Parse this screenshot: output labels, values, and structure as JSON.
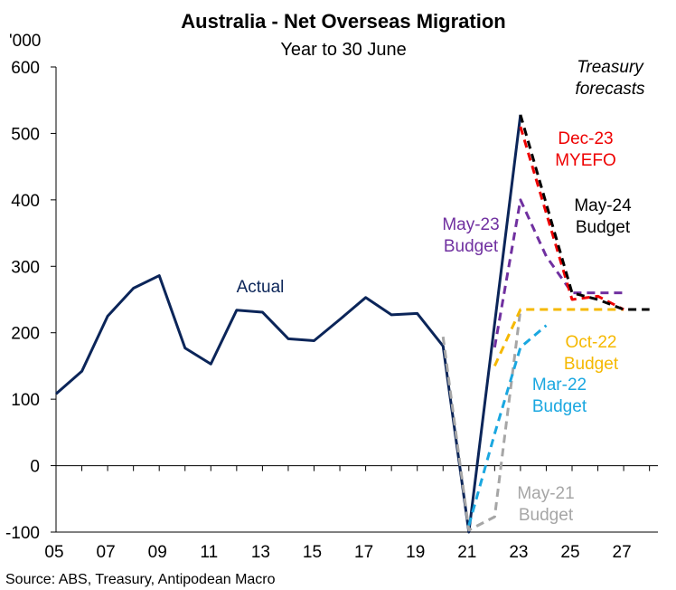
{
  "chart_data": {
    "type": "line",
    "title": "Australia - Net Overseas Migration",
    "subtitle": "Year to 30 June",
    "ylabel": "'000",
    "xlabel": "",
    "source": "Source: ABS, Treasury, Antipodean Macro",
    "ylim": [
      -100,
      600
    ],
    "xlim": [
      2005,
      2028
    ],
    "yticks": [
      -100,
      0,
      100,
      200,
      300,
      400,
      500,
      600
    ],
    "xticks": [
      {
        "label": "05",
        "x": 2005
      },
      {
        "label": "07",
        "x": 2007
      },
      {
        "label": "09",
        "x": 2009
      },
      {
        "label": "11",
        "x": 2011
      },
      {
        "label": "13",
        "x": 2013
      },
      {
        "label": "15",
        "x": 2015
      },
      {
        "label": "17",
        "x": 2017
      },
      {
        "label": "19",
        "x": 2019
      },
      {
        "label": "21",
        "x": 2021
      },
      {
        "label": "23",
        "x": 2023
      },
      {
        "label": "25",
        "x": 2025
      },
      {
        "label": "27",
        "x": 2027
      }
    ],
    "series": [
      {
        "key": "actual",
        "color": "#0b2559",
        "dash": false,
        "x": [
          2005,
          2006,
          2007,
          2008,
          2009,
          2010,
          2011,
          2012,
          2013,
          2014,
          2015,
          2016,
          2017,
          2018,
          2019,
          2020,
          2021,
          2023
        ],
        "y": [
          108,
          142,
          225,
          267,
          286,
          177,
          153,
          234,
          231,
          191,
          188,
          220,
          253,
          227,
          229,
          180,
          -100,
          528
        ]
      },
      {
        "key": "may21",
        "color": "#a6a6a6",
        "dash": true,
        "x": [
          2020,
          2021,
          2022,
          2023
        ],
        "y": [
          194,
          -97,
          -77,
          235
        ]
      },
      {
        "key": "mar22",
        "color": "#1aa7e0",
        "dash": true,
        "x": [
          2021,
          2022,
          2023,
          2024
        ],
        "y": [
          -90,
          48,
          178,
          211
        ]
      },
      {
        "key": "oct22",
        "color": "#f5b800",
        "dash": true,
        "x": [
          2022,
          2023,
          2024,
          2025,
          2026,
          2027
        ],
        "y": [
          150,
          235,
          235,
          235,
          235,
          235
        ]
      },
      {
        "key": "may23",
        "color": "#7030a0",
        "dash": true,
        "x": [
          2022,
          2023,
          2024,
          2025,
          2026,
          2027
        ],
        "y": [
          178,
          400,
          315,
          260,
          260,
          260
        ]
      },
      {
        "key": "dec23",
        "color": "#ee0000",
        "dash": true,
        "x": [
          2023,
          2025,
          2026,
          2027
        ],
        "y": [
          510,
          250,
          255,
          235
        ]
      },
      {
        "key": "may24",
        "color": "#000000",
        "dash": true,
        "x": [
          2023,
          2025,
          2026,
          2027,
          2028
        ],
        "y": [
          528,
          260,
          250,
          235,
          235
        ]
      }
    ],
    "annotations": [
      {
        "key": "actual",
        "lines": [
          "Actual"
        ],
        "color": "#0b2559",
        "italic": false
      },
      {
        "key": "may23",
        "lines": [
          "May-23",
          "Budget"
        ],
        "color": "#7030a0",
        "italic": false
      },
      {
        "key": "dec23",
        "lines": [
          "Dec-23",
          "MYEFO"
        ],
        "color": "#ee0000",
        "italic": false
      },
      {
        "key": "may24",
        "lines": [
          "May-24",
          "Budget"
        ],
        "color": "#000000",
        "italic": false
      },
      {
        "key": "oct22",
        "lines": [
          "Oct-22",
          "Budget"
        ],
        "color": "#f5b800",
        "italic": false
      },
      {
        "key": "mar22",
        "lines": [
          "Mar-22",
          "Budget"
        ],
        "color": "#1aa7e0",
        "italic": false
      },
      {
        "key": "may21",
        "lines": [
          "May-21",
          "Budget"
        ],
        "color": "#a6a6a6",
        "italic": false
      },
      {
        "key": "treasury",
        "lines": [
          "Treasury",
          "forecasts"
        ],
        "color": "#000000",
        "italic": true
      }
    ]
  }
}
